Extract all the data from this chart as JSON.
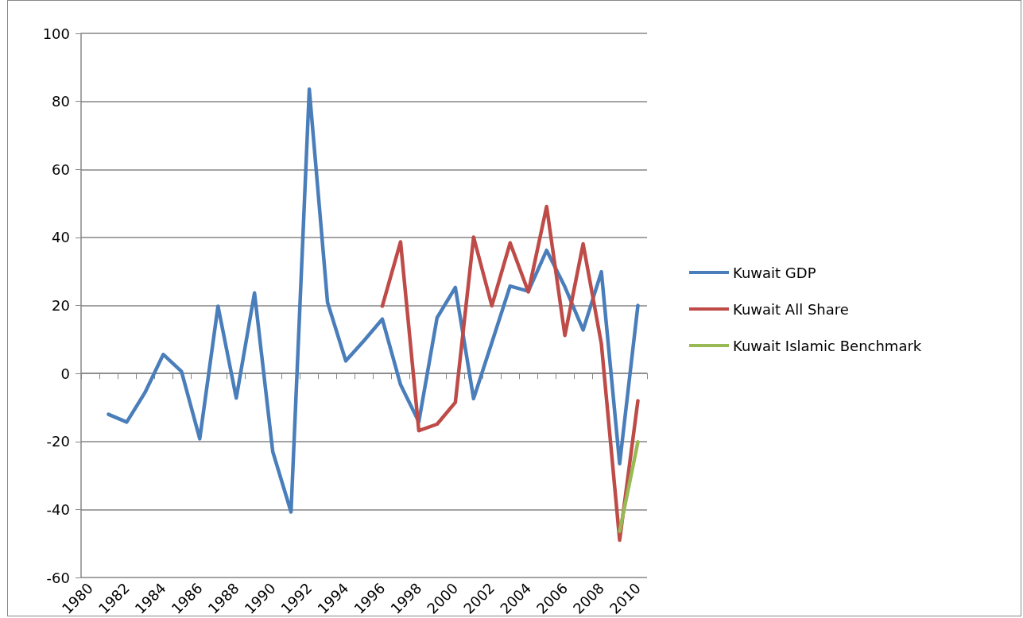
{
  "chart_data": {
    "type": "line",
    "categories": [
      "1980",
      null,
      "1982",
      null,
      "1984",
      null,
      "1986",
      null,
      "1988",
      null,
      "1990",
      null,
      "1992",
      null,
      "1994",
      null,
      "1996",
      null,
      "1998",
      null,
      "2000",
      null,
      "2002",
      null,
      "2004",
      null,
      "2006",
      null,
      "2008",
      null,
      "2010"
    ],
    "series": [
      {
        "name": "Kuwait GDP",
        "color": "#4a7ebb",
        "values": [
          null,
          -12,
          -14.3,
          -5.6,
          5.6,
          0.6,
          -19.2,
          19.8,
          -7.2,
          23.7,
          -23,
          -40.7,
          83.6,
          20.9,
          3.7,
          9.7,
          16,
          -3.3,
          -14.2,
          16.4,
          25.3,
          -7.4,
          9.1,
          25.7,
          24.2,
          36.2,
          25.5,
          12.8,
          29.9,
          -26.5,
          20
        ]
      },
      {
        "name": "Kuwait All Share",
        "color": "#be4b48",
        "values": [
          null,
          null,
          null,
          null,
          null,
          null,
          null,
          null,
          null,
          null,
          null,
          null,
          null,
          null,
          null,
          null,
          19.8,
          38.7,
          -16.8,
          -14.9,
          -8.5,
          40.1,
          19.9,
          38.4,
          24,
          49.1,
          11.2,
          38.1,
          8.7,
          -49,
          -8
        ]
      },
      {
        "name": "Kuwait Islamic Benchmark",
        "color": "#98b954",
        "values": [
          null,
          null,
          null,
          null,
          null,
          null,
          null,
          null,
          null,
          null,
          null,
          null,
          null,
          null,
          null,
          null,
          null,
          null,
          null,
          null,
          null,
          null,
          null,
          null,
          null,
          null,
          null,
          null,
          null,
          -46.4,
          -20.1
        ]
      }
    ],
    "ylim": [
      -60,
      100
    ],
    "yticks": [
      -60,
      -40,
      -20,
      0,
      20,
      40,
      60,
      80,
      100
    ],
    "grid": "y",
    "legend": "right",
    "marker": "none",
    "line_style": "solid"
  }
}
